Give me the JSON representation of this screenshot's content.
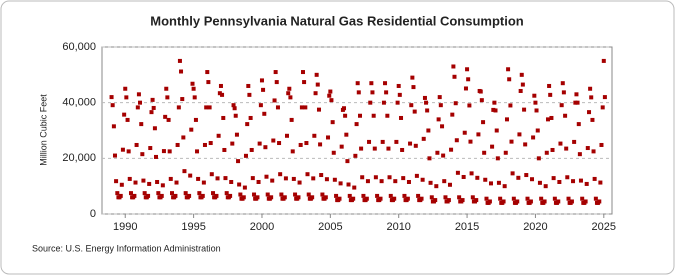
{
  "chart_data": {
    "type": "scatter",
    "title": "Monthly Pennsylvania Natural Gas Residential Consumption",
    "y_label": "Million Cubic Feet",
    "source": "Source: U.S. Energy Information Administration",
    "grid": true,
    "xlim": [
      1988.3,
      2025.6
    ],
    "ylim": [
      0,
      60000
    ],
    "xticks": [
      1990,
      1995,
      2000,
      2005,
      2010,
      2015,
      2020,
      2025
    ],
    "yticks": [
      0,
      {
        "value": 20000,
        "label": "20,000"
      },
      {
        "value": 40000,
        "label": "40,000"
      },
      {
        "value": 60000,
        "label": "60,000"
      }
    ],
    "x": [
      1989.0,
      1989.08,
      1989.17,
      1989.25,
      1989.33,
      1989.42,
      1989.5,
      1989.58,
      1989.67,
      1989.75,
      1989.83,
      1989.92,
      1990.0,
      1990.08,
      1990.17,
      1990.25,
      1990.33,
      1990.42,
      1990.5,
      1990.58,
      1990.67,
      1990.75,
      1990.83,
      1990.92,
      1991.0,
      1991.08,
      1991.17,
      1991.25,
      1991.33,
      1991.42,
      1991.5,
      1991.58,
      1991.67,
      1991.75,
      1991.83,
      1991.92,
      1992.0,
      1992.08,
      1992.17,
      1992.25,
      1992.33,
      1992.42,
      1992.5,
      1992.58,
      1992.67,
      1992.75,
      1992.83,
      1992.92,
      1993.0,
      1993.08,
      1993.17,
      1993.25,
      1993.33,
      1993.42,
      1993.5,
      1993.58,
      1993.67,
      1993.75,
      1993.83,
      1993.92,
      1994.0,
      1994.08,
      1994.17,
      1994.25,
      1994.33,
      1994.42,
      1994.5,
      1994.58,
      1994.67,
      1994.75,
      1994.83,
      1994.92,
      1995.0,
      1995.08,
      1995.17,
      1995.25,
      1995.33,
      1995.42,
      1995.5,
      1995.58,
      1995.67,
      1995.75,
      1995.83,
      1995.92,
      1996.0,
      1996.08,
      1996.17,
      1996.25,
      1996.33,
      1996.42,
      1996.5,
      1996.58,
      1996.67,
      1996.75,
      1996.83,
      1996.92,
      1997.0,
      1997.08,
      1997.17,
      1997.25,
      1997.33,
      1997.42,
      1997.5,
      1997.58,
      1997.67,
      1997.75,
      1997.83,
      1997.92,
      1998.0,
      1998.08,
      1998.17,
      1998.25,
      1998.33,
      1998.42,
      1998.5,
      1998.58,
      1998.67,
      1998.75,
      1998.83,
      1998.92,
      1999.0,
      1999.08,
      1999.17,
      1999.25,
      1999.33,
      1999.42,
      1999.5,
      1999.58,
      1999.67,
      1999.75,
      1999.83,
      1999.92,
      2000.0,
      2000.08,
      2000.17,
      2000.25,
      2000.33,
      2000.42,
      2000.5,
      2000.58,
      2000.67,
      2000.75,
      2000.83,
      2000.92,
      2001.0,
      2001.08,
      2001.17,
      2001.25,
      2001.33,
      2001.42,
      2001.5,
      2001.58,
      2001.67,
      2001.75,
      2001.83,
      2001.92,
      2002.0,
      2002.08,
      2002.17,
      2002.25,
      2002.33,
      2002.42,
      2002.5,
      2002.58,
      2002.67,
      2002.75,
      2002.83,
      2002.92,
      2003.0,
      2003.08,
      2003.17,
      2003.25,
      2003.33,
      2003.42,
      2003.5,
      2003.58,
      2003.67,
      2003.75,
      2003.83,
      2003.92,
      2004.0,
      2004.08,
      2004.17,
      2004.25,
      2004.33,
      2004.42,
      2004.5,
      2004.58,
      2004.67,
      2004.75,
      2004.83,
      2004.92,
      2005.0,
      2005.08,
      2005.17,
      2005.25,
      2005.33,
      2005.42,
      2005.5,
      2005.58,
      2005.67,
      2005.75,
      2005.83,
      2005.92,
      2006.0,
      2006.08,
      2006.17,
      2006.25,
      2006.33,
      2006.42,
      2006.5,
      2006.58,
      2006.67,
      2006.75,
      2006.83,
      2006.92,
      2007.0,
      2007.08,
      2007.17,
      2007.25,
      2007.33,
      2007.42,
      2007.5,
      2007.58,
      2007.67,
      2007.75,
      2007.83,
      2007.92,
      2008.0,
      2008.08,
      2008.17,
      2008.25,
      2008.33,
      2008.42,
      2008.5,
      2008.58,
      2008.67,
      2008.75,
      2008.83,
      2008.92,
      2009.0,
      2009.08,
      2009.17,
      2009.25,
      2009.33,
      2009.42,
      2009.5,
      2009.58,
      2009.67,
      2009.75,
      2009.83,
      2009.92,
      2010.0,
      2010.08,
      2010.17,
      2010.25,
      2010.33,
      2010.42,
      2010.5,
      2010.58,
      2010.67,
      2010.75,
      2010.83,
      2010.92,
      2011.0,
      2011.08,
      2011.17,
      2011.25,
      2011.33,
      2011.42,
      2011.5,
      2011.58,
      2011.67,
      2011.75,
      2011.83,
      2011.92,
      2012.0,
      2012.08,
      2012.17,
      2012.25,
      2012.33,
      2012.42,
      2012.5,
      2012.58,
      2012.67,
      2012.75,
      2012.83,
      2012.92,
      2013.0,
      2013.08,
      2013.17,
      2013.25,
      2013.33,
      2013.42,
      2013.5,
      2013.58,
      2013.67,
      2013.75,
      2013.83,
      2013.92,
      2014.0,
      2014.08,
      2014.17,
      2014.25,
      2014.33,
      2014.42,
      2014.5,
      2014.58,
      2014.67,
      2014.75,
      2014.83,
      2014.92,
      2015.0,
      2015.08,
      2015.17,
      2015.25,
      2015.33,
      2015.42,
      2015.5,
      2015.58,
      2015.67,
      2015.75,
      2015.83,
      2015.92,
      2016.0,
      2016.08,
      2016.17,
      2016.25,
      2016.33,
      2016.42,
      2016.5,
      2016.58,
      2016.67,
      2016.75,
      2016.83,
      2016.92,
      2017.0,
      2017.08,
      2017.17,
      2017.25,
      2017.33,
      2017.42,
      2017.5,
      2017.58,
      2017.67,
      2017.75,
      2017.83,
      2017.92,
      2018.0,
      2018.08,
      2018.17,
      2018.25,
      2018.33,
      2018.42,
      2018.5,
      2018.58,
      2018.67,
      2018.75,
      2018.83,
      2018.92,
      2019.0,
      2019.08,
      2019.17,
      2019.25,
      2019.33,
      2019.42,
      2019.5,
      2019.58,
      2019.67,
      2019.75,
      2019.83,
      2019.92,
      2020.0,
      2020.08,
      2020.17,
      2020.25,
      2020.33,
      2020.42,
      2020.5,
      2020.58,
      2020.67,
      2020.75,
      2020.83,
      2020.92,
      2021.0,
      2021.08,
      2021.17,
      2021.25,
      2021.33,
      2021.42,
      2021.5,
      2021.58,
      2021.67,
      2021.75,
      2021.83,
      2021.92,
      2022.0,
      2022.08,
      2022.17,
      2022.25,
      2022.33,
      2022.42,
      2022.5,
      2022.58,
      2022.67,
      2022.75,
      2022.83,
      2022.92,
      2023.0,
      2023.08,
      2023.17,
      2023.25,
      2023.33,
      2023.42,
      2023.5,
      2023.58,
      2023.67,
      2023.75,
      2023.83,
      2023.92,
      2024.0,
      2024.08,
      2024.17,
      2024.25,
      2024.33,
      2024.42,
      2024.5,
      2024.58,
      2024.67,
      2024.75,
      2024.83,
      2024.92,
      2025.0,
      2025.08
    ],
    "series": [
      {
        "color": "#a50000",
        "values": [
          42000,
          39100,
          31500,
          21000,
          11800,
          7500,
          6000,
          6000,
          6500,
          10500,
          23100,
          35700,
          45000,
          41900,
          33800,
          22500,
          12600,
          7500,
          6000,
          6000,
          6500,
          11300,
          24800,
          38300,
          43000,
          40000,
          32300,
          21500,
          12000,
          7500,
          6000,
          6000,
          6500,
          10800,
          23700,
          36600,
          41000,
          38100,
          30800,
          20500,
          11500,
          7500,
          6000,
          6000,
          6500,
          10300,
          22600,
          34900,
          45000,
          41900,
          33800,
          22500,
          12600,
          7500,
          6000,
          6000,
          6500,
          11300,
          24800,
          38300,
          55000,
          51200,
          41300,
          27500,
          15400,
          7500,
          6000,
          6000,
          6500,
          13800,
          30300,
          46800,
          45000,
          41900,
          33800,
          22500,
          12600,
          7500,
          6000,
          6000,
          6500,
          11300,
          24800,
          38300,
          51000,
          47400,
          38300,
          25500,
          14300,
          7500,
          6000,
          6000,
          6500,
          12800,
          28100,
          43400,
          46000,
          42800,
          34500,
          23000,
          12900,
          7500,
          6000,
          6000,
          6500,
          11500,
          25300,
          39100,
          38000,
          35300,
          28500,
          19000,
          10600,
          7000,
          5500,
          5500,
          6000,
          9500,
          20900,
          32300,
          46000,
          42800,
          34500,
          23000,
          12900,
          7000,
          5500,
          5500,
          6000,
          11500,
          25300,
          39100,
          48000,
          44600,
          36000,
          24000,
          13400,
          7000,
          5500,
          5500,
          6000,
          12000,
          26400,
          40800,
          51000,
          47400,
          38300,
          25500,
          14300,
          7000,
          5500,
          5500,
          6000,
          12800,
          28100,
          43400,
          45000,
          41900,
          33800,
          22500,
          12600,
          7000,
          5500,
          5500,
          6000,
          11300,
          24800,
          38300,
          51000,
          47400,
          38300,
          25500,
          14300,
          7000,
          5500,
          5500,
          6000,
          12800,
          28100,
          43400,
          50000,
          46500,
          37500,
          25000,
          14000,
          7000,
          5500,
          5500,
          6000,
          12500,
          27500,
          42500,
          44000,
          40900,
          33000,
          22000,
          12300,
          6500,
          5000,
          5000,
          5500,
          11000,
          24200,
          37400,
          38000,
          35300,
          28500,
          19000,
          10600,
          6500,
          5000,
          5000,
          5500,
          9500,
          20900,
          32300,
          47000,
          43700,
          35300,
          23500,
          13200,
          6500,
          5000,
          5000,
          5500,
          11800,
          25900,
          40000,
          47000,
          43700,
          35300,
          23500,
          13200,
          6500,
          5000,
          5000,
          5500,
          11800,
          25900,
          40000,
          47000,
          43700,
          35300,
          23500,
          13200,
          6500,
          5000,
          5000,
          5500,
          11800,
          25900,
          40000,
          46000,
          42800,
          34500,
          23000,
          12900,
          6500,
          5000,
          5000,
          5500,
          11500,
          25300,
          39100,
          49000,
          45600,
          36800,
          24500,
          13700,
          6500,
          5000,
          5000,
          5500,
          12300,
          27000,
          41700,
          40000,
          37200,
          30000,
          20000,
          11200,
          6000,
          4500,
          4500,
          5000,
          10000,
          22000,
          34000,
          42000,
          39100,
          31500,
          21000,
          11800,
          6000,
          4500,
          4500,
          5000,
          10500,
          23100,
          35700,
          53000,
          49300,
          39800,
          26500,
          14800,
          6000,
          4500,
          4500,
          5000,
          13300,
          29200,
          45100,
          52000,
          48400,
          39000,
          26000,
          14600,
          6000,
          4500,
          4500,
          5000,
          13000,
          28600,
          44200,
          44000,
          40900,
          33000,
          22000,
          12300,
          5500,
          4000,
          4000,
          4500,
          11000,
          24200,
          37400,
          40000,
          37200,
          30000,
          20000,
          11200,
          5500,
          4000,
          4000,
          4500,
          10000,
          22000,
          34000,
          52000,
          48400,
          39000,
          26000,
          14600,
          5500,
          4000,
          4000,
          4500,
          13000,
          28600,
          44200,
          50000,
          46500,
          37500,
          25000,
          14000,
          5500,
          4000,
          4000,
          4500,
          12500,
          27500,
          42500,
          40000,
          37200,
          30000,
          20000,
          11200,
          5500,
          4000,
          4000,
          4500,
          10000,
          22000,
          34000,
          46000,
          42800,
          34500,
          23000,
          12900,
          5500,
          4000,
          4000,
          4500,
          11500,
          25300,
          39100,
          47000,
          43700,
          35300,
          23500,
          13200,
          5500,
          4000,
          4000,
          4500,
          11800,
          25900,
          40000,
          43000,
          40000,
          32300,
          21500,
          12000,
          5500,
          4000,
          4000,
          4500,
          10800,
          23700,
          36600,
          45000,
          41900,
          33800,
          22500,
          12600,
          5500,
          4000,
          4000,
          4500,
          11300,
          24800,
          38300,
          55000,
          42000
        ]
      }
    ]
  }
}
